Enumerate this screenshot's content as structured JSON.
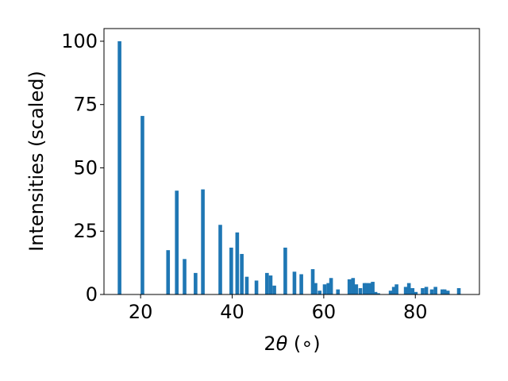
{
  "chart_data": {
    "type": "bar",
    "title": "",
    "xlabel_prefix": "2",
    "xlabel_symbol": "θ",
    "xlabel_suffix": " (∘)",
    "ylabel": "Intensities (scaled)",
    "xlim": [
      12,
      94
    ],
    "ylim": [
      0,
      105
    ],
    "xticks": [
      20,
      40,
      60,
      80
    ],
    "yticks": [
      0,
      25,
      50,
      75,
      100
    ],
    "grid": false,
    "bar_color": "#1f77b4",
    "bar_width": 0.8,
    "series": [
      {
        "x": [
          15.4,
          20.4,
          26.0,
          27.9,
          29.6,
          32.0,
          33.6,
          37.4,
          39.8,
          41.1,
          42.1,
          43.2,
          45.3,
          47.6,
          48.4,
          49.2,
          51.6,
          53.6,
          55.1,
          57.6,
          58.2,
          59.1,
          60.2,
          61.0,
          61.6,
          63.1,
          65.6,
          66.4,
          67.1,
          68.0,
          68.9,
          69.3,
          70.0,
          70.7,
          71.3,
          71.9,
          74.6,
          75.3,
          75.9,
          77.9,
          78.6,
          79.4,
          80.1,
          81.6,
          82.4,
          83.6,
          84.4,
          85.9,
          86.4,
          87.1,
          89.5
        ],
        "y": [
          100,
          70.5,
          17.5,
          41,
          14,
          8.5,
          41.5,
          27.5,
          18.5,
          24.5,
          16,
          7,
          5.5,
          8.5,
          7.5,
          3.5,
          18.5,
          9,
          8,
          10,
          4.5,
          1.5,
          4,
          4.5,
          6.5,
          2,
          6,
          6.5,
          4,
          2.5,
          4.5,
          4.5,
          4.5,
          5,
          1,
          0.5,
          1.5,
          3,
          4,
          3,
          4.5,
          2.5,
          1,
          2.5,
          3,
          2,
          3,
          2,
          2,
          1.5,
          2.5
        ]
      }
    ]
  }
}
